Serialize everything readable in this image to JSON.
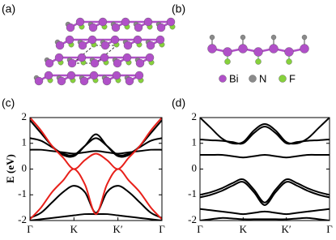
{
  "figure": {
    "panel_labels": [
      "(a)",
      "(b)",
      "(c)",
      "(d)"
    ],
    "legend": [
      {
        "label": "Bi",
        "color": "#b050c8"
      },
      {
        "label": "N",
        "color": "#8a8a8a"
      },
      {
        "label": "F",
        "color": "#86d13c"
      }
    ]
  },
  "chart_data": [
    {
      "type": "line",
      "ylabel": "E (eV)",
      "xlim": [
        0,
        3
      ],
      "ylim": [
        -2,
        2
      ],
      "xticks": [
        {
          "value": 0,
          "label": "Γ"
        },
        {
          "value": 1,
          "label": "K"
        },
        {
          "value": 2,
          "label": "K′"
        },
        {
          "value": 3,
          "label": "Γ"
        }
      ],
      "yticks": [
        -2,
        -1,
        0,
        1,
        2
      ],
      "x": [
        0,
        0.25,
        0.5,
        0.75,
        1,
        1.25,
        1.5,
        1.75,
        2,
        2.25,
        2.5,
        2.75,
        3
      ],
      "series": [
        {
          "color": "#000000",
          "values": [
            1.9,
            1.4,
            0.9,
            0.55,
            0.5,
            0.9,
            1.35,
            0.9,
            0.5,
            0.55,
            0.9,
            1.4,
            1.9
          ]
        },
        {
          "color": "#000000",
          "values": [
            1.2,
            1.1,
            0.85,
            0.6,
            0.55,
            0.9,
            1.2,
            0.9,
            0.55,
            0.6,
            0.85,
            1.1,
            1.2
          ]
        },
        {
          "color": "#000000",
          "values": [
            0.75,
            0.75,
            0.7,
            0.65,
            0.6,
            0.65,
            0.7,
            0.65,
            0.6,
            0.65,
            0.7,
            0.75,
            0.75
          ]
        },
        {
          "color": "#000000",
          "values": [
            -1.9,
            -1.7,
            -1.3,
            -0.9,
            -0.65,
            -0.9,
            -1.7,
            -0.9,
            -0.65,
            -0.9,
            -1.3,
            -1.7,
            -1.9
          ]
        },
        {
          "color": "#000000",
          "values": [
            -2,
            -1.95,
            -1.9,
            -1.85,
            -1.8,
            -1.75,
            -1.75,
            -1.75,
            -1.8,
            -1.85,
            -1.9,
            -1.95,
            -2
          ]
        },
        {
          "color": "#e8201a",
          "values": [
            2,
            1.5,
            0.9,
            0.45,
            0,
            0.35,
            0.6,
            0.35,
            0,
            0.45,
            0.9,
            1.5,
            2
          ]
        },
        {
          "color": "#e8201a",
          "values": [
            -1.95,
            -1.5,
            -0.9,
            -0.45,
            0,
            -0.6,
            -1.75,
            -0.6,
            0,
            -0.45,
            -0.9,
            -1.5,
            -1.95
          ]
        }
      ]
    },
    {
      "type": "line",
      "xlim": [
        0,
        3
      ],
      "ylim": [
        -2,
        2
      ],
      "xticks": [
        {
          "value": 0,
          "label": "Γ"
        },
        {
          "value": 1,
          "label": "K"
        },
        {
          "value": 2,
          "label": "K′"
        },
        {
          "value": 3,
          "label": "Γ"
        }
      ],
      "yticks": [
        -2,
        -1,
        0,
        1,
        2
      ],
      "x": [
        0,
        0.25,
        0.5,
        0.75,
        1,
        1.25,
        1.5,
        1.75,
        2,
        2.25,
        2.5,
        2.75,
        3
      ],
      "series": [
        {
          "color": "#000000",
          "values": [
            2,
            1.6,
            1.2,
            1.0,
            1.05,
            1.5,
            1.75,
            1.5,
            1.05,
            1.0,
            1.2,
            1.6,
            2
          ]
        },
        {
          "color": "#000000",
          "values": [
            1.15,
            1.12,
            1.1,
            1.05,
            1.0,
            1.4,
            1.65,
            1.4,
            1.0,
            1.05,
            1.1,
            1.12,
            1.15
          ]
        },
        {
          "color": "#000000",
          "values": [
            0.55,
            0.55,
            0.55,
            0.5,
            0.45,
            0.5,
            0.55,
            0.5,
            0.45,
            0.5,
            0.55,
            0.55,
            0.55
          ]
        },
        {
          "color": "#000000",
          "values": [
            -1.0,
            -0.9,
            -0.75,
            -0.55,
            -0.4,
            -0.8,
            -1.3,
            -0.8,
            -0.4,
            -0.55,
            -0.75,
            -0.9,
            -1.0
          ]
        },
        {
          "color": "#000000",
          "values": [
            -1.1,
            -1.0,
            -0.85,
            -0.65,
            -0.5,
            -0.9,
            -1.4,
            -0.9,
            -0.5,
            -0.65,
            -0.85,
            -1.0,
            -1.1
          ]
        },
        {
          "color": "#000000",
          "values": [
            -1.55,
            -1.6,
            -1.65,
            -1.7,
            -1.75,
            -1.7,
            -1.65,
            -1.7,
            -1.75,
            -1.7,
            -1.65,
            -1.6,
            -1.55
          ]
        },
        {
          "color": "#000000",
          "values": [
            -2,
            -1.95,
            -1.9,
            -1.92,
            -1.95,
            -1.95,
            -1.95,
            -1.95,
            -1.95,
            -1.92,
            -1.9,
            -1.95,
            -2
          ]
        }
      ]
    }
  ]
}
